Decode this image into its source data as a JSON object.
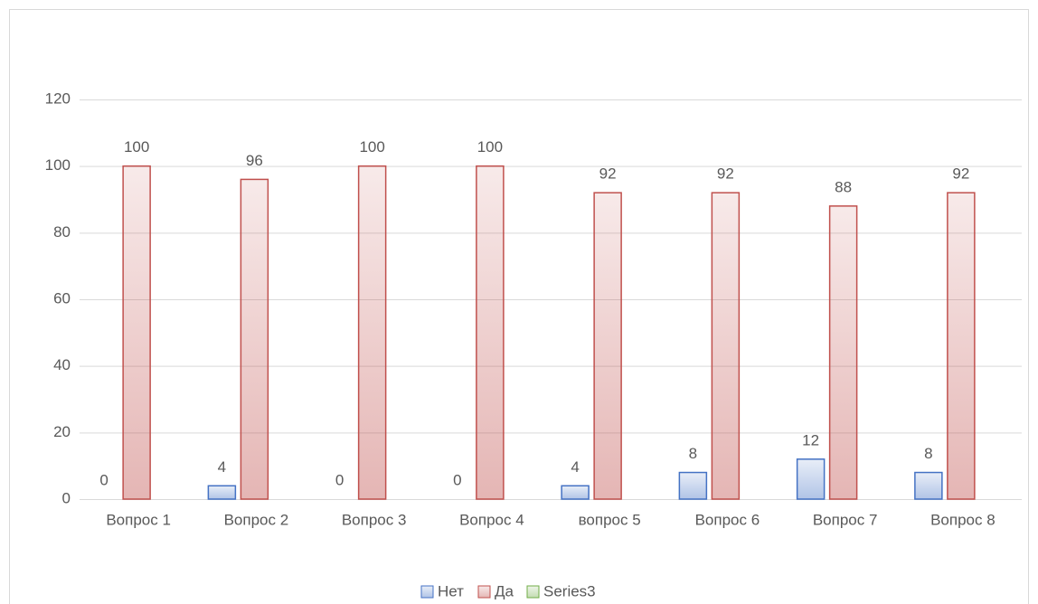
{
  "chart_data": {
    "type": "bar",
    "categories": [
      "Вопрос 1",
      "Вопрос 2",
      "Вопрос 3",
      "Вопрос 4",
      "вопрос 5",
      "Вопрос 6",
      "Вопрос 7",
      "Вопрос 8"
    ],
    "series": [
      {
        "name": "Нет",
        "color": "#4472c4",
        "values": [
          0,
          4,
          0,
          0,
          4,
          8,
          12,
          8
        ]
      },
      {
        "name": "Да",
        "color": "#c0504d",
        "values": [
          100,
          96,
          100,
          100,
          92,
          92,
          88,
          92
        ]
      },
      {
        "name": "Series3",
        "color": "#70ad47",
        "values": [
          null,
          null,
          null,
          null,
          null,
          null,
          null,
          null
        ]
      }
    ],
    "ylim": [
      0,
      120
    ],
    "yticks": [
      0,
      20,
      40,
      60,
      80,
      100,
      120
    ],
    "grid": true,
    "legend": "bottom"
  }
}
